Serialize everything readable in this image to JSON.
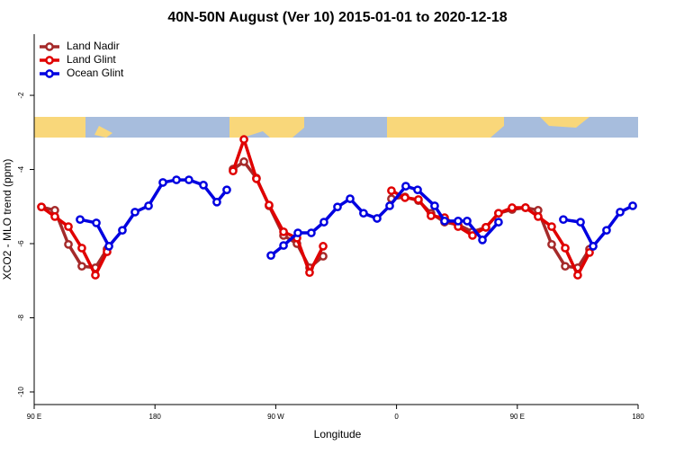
{
  "chart_data": {
    "type": "line",
    "title": "40N-50N August (Ver 10)   2015-01-01 to 2020-12-18",
    "xlabel": "Longitude",
    "ylabel": "XCO2 - MLO trend (ppm)",
    "xlim": [
      90,
      540
    ],
    "ylim": [
      -10.34,
      -0.35
    ],
    "xticks": [
      {
        "value": 90,
        "label": "90 E"
      },
      {
        "value": 180,
        "label": "180"
      },
      {
        "value": 270,
        "label": "90 W"
      },
      {
        "value": 360,
        "label": "0"
      },
      {
        "value": 450,
        "label": "90 E"
      },
      {
        "value": 540,
        "label": "180"
      }
    ],
    "yticks": [
      -2,
      -4,
      -6,
      -8,
      -10
    ],
    "legend": "top-left",
    "series": [
      {
        "name": "Land Nadir",
        "color": "#a52a2a",
        "x": [
          95.4,
          105.4,
          115.5,
          125.5,
          135.6,
          144.3,
          null,
          238.2,
          246.3,
          255.6,
          265.0,
          275.8,
          285.8,
          295.2,
          305.3,
          null,
          356.2,
          366.3,
          376.3,
          385.7,
          395.8,
          405.9,
          416.6,
          426.6,
          436.0,
          446.1,
          456.1,
          465.5,
          475.6,
          485.7,
          495.0,
          503.8
        ],
        "values": [
          -5.01,
          -5.1,
          -6.02,
          -6.61,
          -6.65,
          -6.15,
          null,
          -3.99,
          -3.79,
          -4.23,
          -4.98,
          -5.78,
          -6.0,
          -6.65,
          -6.34,
          null,
          -4.79,
          -4.74,
          -4.84,
          -5.18,
          -5.42,
          -5.49,
          -5.68,
          -5.56,
          -5.18,
          -5.08,
          -5.03,
          -5.1,
          -6.02,
          -6.61,
          -6.65,
          -6.15
        ]
      },
      {
        "name": "Land Glint",
        "color": "#e00000",
        "x": [
          95.4,
          105.4,
          115.5,
          125.5,
          135.6,
          144.3,
          null,
          238.2,
          246.3,
          255.6,
          265.0,
          275.8,
          285.8,
          295.2,
          305.3,
          null,
          356.2,
          366.3,
          376.3,
          385.7,
          395.8,
          405.9,
          416.6,
          426.6,
          436.0,
          446.1,
          456.1,
          465.5,
          475.6,
          485.7,
          495.0,
          503.8
        ],
        "values": [
          -5.01,
          -5.27,
          -5.54,
          -6.12,
          -6.85,
          -6.22,
          null,
          -4.04,
          -3.19,
          -4.25,
          -4.96,
          -5.68,
          -5.85,
          -6.78,
          -6.07,
          null,
          -4.57,
          -4.76,
          -4.81,
          -5.25,
          -5.3,
          -5.54,
          -5.78,
          -5.56,
          -5.18,
          -5.03,
          -5.03,
          -5.27,
          -5.54,
          -6.12,
          -6.85,
          -6.24
        ]
      },
      {
        "name": "Ocean Glint",
        "color": "#0000e0",
        "x": [
          124.2,
          136.3,
          145.7,
          155.7,
          165.1,
          175.2,
          185.9,
          196.0,
          205.3,
          216.1,
          226.1,
          233.5,
          null,
          266.4,
          275.8,
          286.5,
          296.5,
          305.9,
          316.0,
          325.4,
          335.4,
          345.5,
          354.9,
          366.9,
          375.7,
          388.4,
          395.8,
          405.9,
          412.6,
          424.0,
          436.0,
          null,
          484.3,
          497.1,
          506.5,
          516.5,
          526.6,
          536.0
        ],
        "values": [
          -5.35,
          -5.44,
          -6.07,
          -5.64,
          -5.15,
          -4.98,
          -4.35,
          -4.28,
          -4.28,
          -4.42,
          -4.88,
          -4.55,
          null,
          -6.32,
          -6.05,
          -5.71,
          -5.71,
          -5.42,
          -5.01,
          -4.79,
          -5.18,
          -5.32,
          -4.98,
          -4.45,
          -4.55,
          -4.98,
          -5.39,
          -5.39,
          -5.39,
          -5.9,
          -5.42,
          null,
          -5.35,
          -5.42,
          -6.07,
          -5.64,
          -5.15,
          -4.98
        ]
      }
    ]
  }
}
